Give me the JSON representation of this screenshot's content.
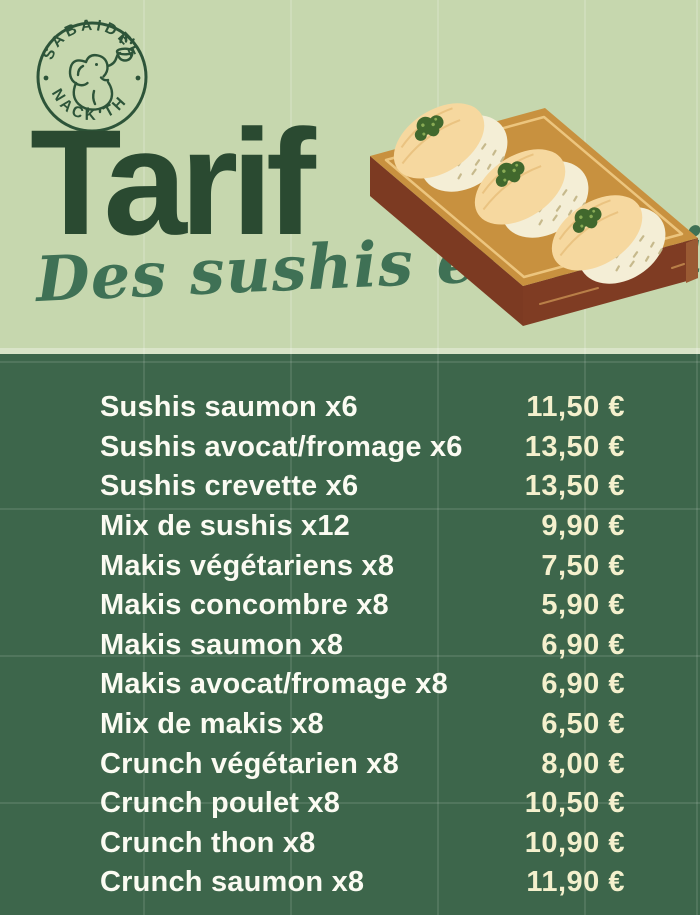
{
  "brand": {
    "circle_top_text": "SABAIDEE",
    "circle_bottom_text": "SNACK THAÏ",
    "icon": "elephant-holding-bowl-icon"
  },
  "header": {
    "title": "Tarif",
    "subtitle": "Des sushis et makis"
  },
  "illustration": {
    "icon": "nigiri-sushi-on-wooden-board-icon"
  },
  "menu": {
    "items": [
      {
        "name": "Sushis saumon x6",
        "price": "11,50 €"
      },
      {
        "name": "Sushis avocat/fromage x6",
        "price": "13,50 €"
      },
      {
        "name": "Sushis crevette x6",
        "price": "13,50 €"
      },
      {
        "name": "Mix de sushis x12",
        "price": "9,90 €"
      },
      {
        "name": "Makis végétariens x8",
        "price": "7,50 €"
      },
      {
        "name": "Makis concombre x8",
        "price": "5,90 €"
      },
      {
        "name": "Makis saumon x8",
        "price": "6,90 €"
      },
      {
        "name": "Makis avocat/fromage x8",
        "price": "6,90 €"
      },
      {
        "name": "Mix de makis x8",
        "price": "6,50 €"
      },
      {
        "name": "Crunch végétarien x8",
        "price": "8,00 €"
      },
      {
        "name": "Crunch poulet x8",
        "price": "10,50 €"
      },
      {
        "name": "Crunch thon x8",
        "price": "10,90 €"
      },
      {
        "name": "Crunch saumon x8",
        "price": "11,90 €"
      }
    ]
  },
  "colors": {
    "light_bg": "#c6d7ae",
    "dark_bg": "#3d664b",
    "title_green": "#2a4a31",
    "script_green": "#3f7155",
    "logo_green": "#2d5439",
    "item_text": "#fbfbf2",
    "price_text": "#f4f0cd",
    "board_top": "#c8913f",
    "board_side": "#7c3a22",
    "board_inset_line": "#ecc57e",
    "sushi_topping": "#f6d89f",
    "sushi_rice": "#f4eed6",
    "wasabi": "#41682d"
  }
}
